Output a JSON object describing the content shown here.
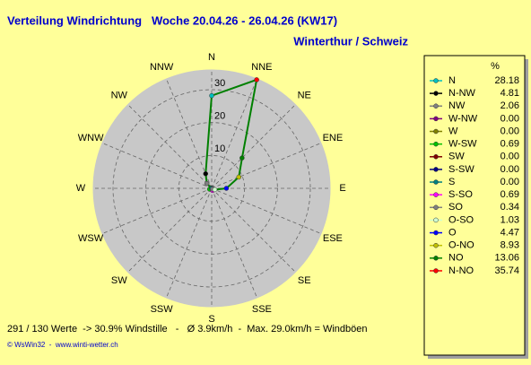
{
  "chart_data": {
    "type": "polar",
    "title": "Verteilung Windrichtung   Woche 20.04.26 - 26.04.26 (KW17)",
    "subtitle": "Winterthur / Schweiz",
    "direction_labels": [
      "N",
      "NNE",
      "NE",
      "ENE",
      "E",
      "ESE",
      "SE",
      "SSE",
      "S",
      "SSW",
      "SW",
      "WSW",
      "W",
      "WNW",
      "NW",
      "NNW"
    ],
    "legend_title": "%",
    "categories": [
      "N",
      "N-NW",
      "NW",
      "W-NW",
      "W",
      "W-SW",
      "SW",
      "S-SW",
      "S",
      "S-SO",
      "SO",
      "O-SO",
      "O",
      "O-NO",
      "NO",
      "N-NO"
    ],
    "values": [
      28.18,
      4.81,
      2.06,
      0,
      0,
      0.69,
      0,
      0,
      0,
      0.69,
      0.34,
      1.03,
      4.47,
      8.93,
      13.06,
      35.74
    ],
    "value_labels": [
      "28.18",
      "4.81",
      "2.06",
      "0.00",
      "0.00",
      "0.69",
      "0.00",
      "0.00",
      "0.00",
      "0.69",
      "0.34",
      "1.03",
      "4.47",
      "8.93",
      "13.06",
      "35.74"
    ],
    "colors": [
      "#00c0c0",
      "#000000",
      "#808080",
      "#800080",
      "#808000",
      "#00c000",
      "#800000",
      "#000080",
      "#008080",
      "#ff00ff",
      "#808080",
      "#d0ffd0",
      "#0000ff",
      "#c0c000",
      "#008000",
      "#ff0000"
    ],
    "line_color": "#008000",
    "rlim": [
      0,
      36
    ],
    "rticks": [
      10,
      20,
      30
    ],
    "footer": "291 / 130 Werte  -> 30.9% Windstille   -   Ø 3.9km/h  -  Max. 29.0km/h = Windböen",
    "credit": "© WsWin32  -  www.winti-wetter.ch"
  }
}
